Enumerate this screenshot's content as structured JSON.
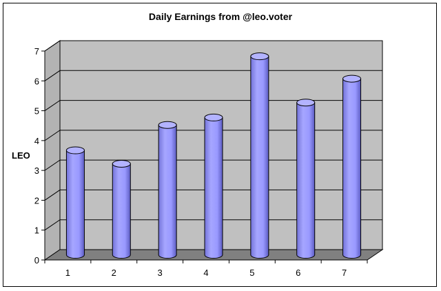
{
  "chart_data": {
    "type": "bar",
    "title": "Daily Earnings from @leo.voter",
    "xlabel": "",
    "ylabel": "LEO",
    "categories": [
      "1",
      "2",
      "3",
      "4",
      "5",
      "6",
      "7"
    ],
    "values": [
      3.5,
      3.05,
      4.35,
      4.6,
      6.65,
      5.1,
      5.9
    ],
    "ylim": [
      0,
      7
    ],
    "yticks": [
      "0",
      "1",
      "2",
      "3",
      "4",
      "5",
      "6",
      "7"
    ],
    "grid": true,
    "style": "3d-cylinder",
    "colors": {
      "bar": "#9999ff",
      "bar_dark": "#6666cc",
      "bar_top": "#b3b3ff",
      "wall": "#c0c0c0",
      "floor": "#808080"
    }
  }
}
